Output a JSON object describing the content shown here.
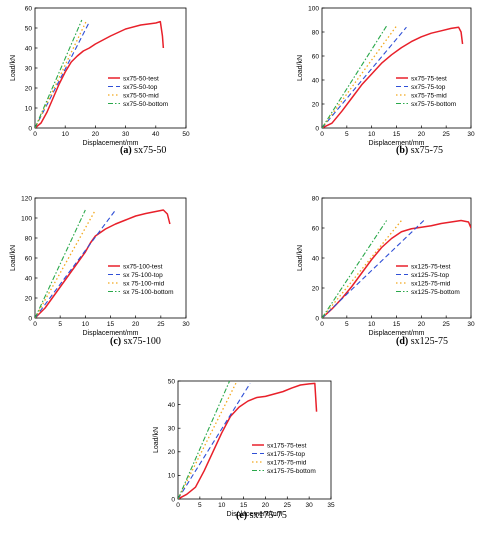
{
  "colors": {
    "test": "#e8202a",
    "top": "#2f4fd6",
    "mid": "#f2a81d",
    "bottom": "#2aa84a"
  },
  "chart_data": [
    {
      "type": "line",
      "caption_letter": "(a)",
      "caption_name": "sx75-50",
      "xlabel": "Displacement/mm",
      "ylabel": "Load/kN",
      "xlim": [
        0,
        50
      ],
      "ylim": [
        0,
        60
      ],
      "xticks": [
        0,
        10,
        20,
        30,
        40,
        50
      ],
      "yticks": [
        0,
        10,
        20,
        30,
        40,
        50,
        60
      ],
      "legend_position": "center-right",
      "series": [
        {
          "name": "sx75-50-test",
          "style": "test",
          "x": [
            0,
            2,
            4,
            6,
            8,
            10,
            12,
            14,
            16,
            18,
            20,
            25,
            30,
            35,
            40,
            41.5,
            42.2,
            42.5
          ],
          "y": [
            0,
            2.5,
            8,
            15,
            22,
            28,
            33,
            36,
            38.5,
            40,
            42,
            46,
            49.5,
            51.5,
            52.5,
            53.2,
            46,
            40
          ]
        },
        {
          "name": "sx75-50-top",
          "style": "top",
          "x": [
            0,
            18
          ],
          "y": [
            0,
            53
          ]
        },
        {
          "name": "sx75-50-mid",
          "style": "mid",
          "x": [
            0,
            17
          ],
          "y": [
            0,
            53.5
          ]
        },
        {
          "name": "sx75-50-bottom",
          "style": "bottom",
          "x": [
            0,
            15.5
          ],
          "y": [
            0,
            54
          ]
        }
      ]
    },
    {
      "type": "line",
      "caption_letter": "(b)",
      "caption_name": "sx75-75",
      "xlabel": "Displacement/mm",
      "ylabel": "Load/kN",
      "xlim": [
        0,
        30
      ],
      "ylim": [
        0,
        100
      ],
      "xticks": [
        0,
        5,
        10,
        15,
        20,
        25,
        30
      ],
      "yticks": [
        0,
        20,
        40,
        60,
        80,
        100
      ],
      "legend_position": "center-right",
      "series": [
        {
          "name": "sx75-75-test",
          "style": "test",
          "x": [
            0,
            2,
            4,
            6,
            8,
            10,
            12,
            14,
            16,
            18,
            20,
            22,
            24,
            26,
            27.5,
            28,
            28.3
          ],
          "y": [
            0,
            4,
            14,
            25,
            36,
            45,
            54,
            61,
            67,
            72,
            76,
            79,
            81,
            83,
            84,
            80,
            70
          ]
        },
        {
          "name": "sx75-75-top",
          "style": "top",
          "x": [
            0,
            17
          ],
          "y": [
            0,
            84
          ]
        },
        {
          "name": "sx75-75-mid",
          "style": "mid",
          "x": [
            0,
            15
          ],
          "y": [
            0,
            85
          ]
        },
        {
          "name": "sx75-75-bottom",
          "style": "bottom",
          "x": [
            0,
            13
          ],
          "y": [
            0,
            85
          ]
        }
      ]
    },
    {
      "type": "line",
      "caption_letter": "(c)",
      "caption_name": "sx75-100",
      "xlabel": "Displacement/mm",
      "ylabel": "Load/kN",
      "xlim": [
        0,
        30
      ],
      "ylim": [
        0,
        120
      ],
      "xticks": [
        0,
        5,
        10,
        15,
        20,
        25,
        30
      ],
      "yticks": [
        0,
        20,
        40,
        60,
        80,
        100,
        120
      ],
      "legend_position": "center-right",
      "series": [
        {
          "name": "sx75-100-test",
          "style": "test",
          "x": [
            0,
            2,
            4,
            6,
            8,
            10,
            11,
            12,
            14,
            16,
            18,
            20,
            22,
            24,
            25.5,
            26.3,
            26.8
          ],
          "y": [
            0,
            10,
            24,
            38,
            52,
            66,
            75,
            82,
            89,
            94,
            98,
            102,
            104.5,
            106.5,
            108,
            104,
            94
          ]
        },
        {
          "name": "sx 75-100-top",
          "style": "top",
          "x": [
            0,
            16
          ],
          "y": [
            0,
            108
          ]
        },
        {
          "name": "sx 75-100-mid",
          "style": "mid",
          "x": [
            0,
            12
          ],
          "y": [
            0,
            108
          ]
        },
        {
          "name": "sx 75-100-bottom",
          "style": "bottom",
          "x": [
            0,
            10
          ],
          "y": [
            0,
            108
          ]
        }
      ]
    },
    {
      "type": "line",
      "caption_letter": "(d)",
      "caption_name": "sx125-75",
      "xlabel": "Displacement/mm",
      "ylabel": "Load/kN",
      "xlim": [
        0,
        30
      ],
      "ylim": [
        0,
        80
      ],
      "xticks": [
        0,
        5,
        10,
        15,
        20,
        25,
        30
      ],
      "yticks": [
        0,
        20,
        40,
        60,
        80
      ],
      "legend_position": "center-right",
      "series": [
        {
          "name": "sx125-75-test",
          "style": "test",
          "x": [
            0,
            2,
            4,
            6,
            8,
            10,
            12,
            14,
            16,
            18,
            20,
            22,
            24,
            26,
            28,
            29.5,
            30
          ],
          "y": [
            0,
            6,
            13,
            21,
            30,
            39,
            47,
            53,
            57.5,
            59.5,
            60.5,
            61.5,
            63,
            64,
            65,
            64,
            60
          ]
        },
        {
          "name": "sx125-75-top",
          "style": "top",
          "x": [
            0,
            20.5
          ],
          "y": [
            0,
            65
          ]
        },
        {
          "name": "sx125-75-mid",
          "style": "mid",
          "x": [
            0,
            16
          ],
          "y": [
            0,
            65
          ]
        },
        {
          "name": "sx125-75-bottom",
          "style": "bottom",
          "x": [
            0,
            13
          ],
          "y": [
            0,
            65
          ]
        }
      ]
    },
    {
      "type": "line",
      "caption_letter": "(e)",
      "caption_name": "sx175-75",
      "xlabel": "Displacement/mm",
      "ylabel": "Load/kN",
      "xlim": [
        0,
        35
      ],
      "ylim": [
        0,
        50
      ],
      "xticks": [
        0,
        5,
        10,
        15,
        20,
        25,
        30,
        35
      ],
      "yticks": [
        0,
        10,
        20,
        30,
        40,
        50
      ],
      "legend_position": "center-right",
      "series": [
        {
          "name": "sx175-75-test",
          "style": "test",
          "x": [
            0,
            2,
            4,
            6,
            8,
            10,
            12,
            14,
            16,
            18,
            20,
            22,
            24,
            26,
            28,
            30,
            31.3,
            31.7
          ],
          "y": [
            0,
            2,
            5,
            12,
            20,
            28,
            35,
            39,
            41.5,
            43,
            43.5,
            44.5,
            45.5,
            47,
            48.3,
            48.8,
            49,
            37
          ]
        },
        {
          "name": "sx175-75-top",
          "style": "top",
          "x": [
            0,
            16.5
          ],
          "y": [
            0,
            49
          ]
        },
        {
          "name": "sx175-75-mid",
          "style": "mid",
          "x": [
            0,
            13.5
          ],
          "y": [
            0,
            50
          ]
        },
        {
          "name": "sx175-75-bottom",
          "style": "bottom",
          "x": [
            0,
            11.8
          ],
          "y": [
            0,
            50
          ]
        }
      ]
    }
  ]
}
